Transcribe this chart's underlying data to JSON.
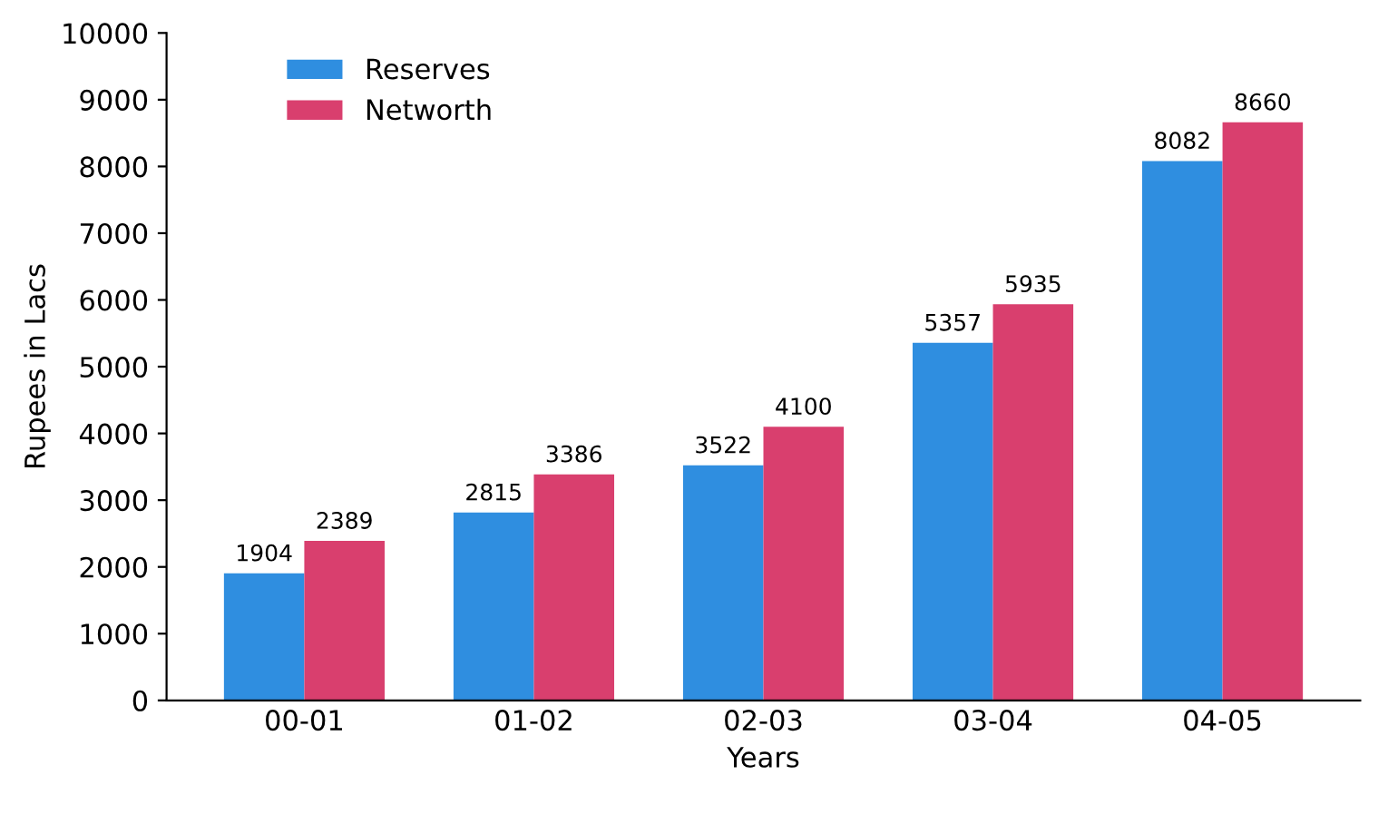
{
  "chart_data": {
    "type": "bar",
    "xlabel": "Years",
    "ylabel": "Rupees in Lacs",
    "categories": [
      "00-01",
      "01-02",
      "02-03",
      "03-04",
      "04-05"
    ],
    "series": [
      {
        "name": "Reserves",
        "color": "#2f8ee0",
        "values": [
          1904,
          2815,
          3522,
          5357,
          8082
        ]
      },
      {
        "name": "Networth",
        "color": "#d93f6e",
        "values": [
          2389,
          3386,
          4100,
          5935,
          8660
        ]
      }
    ],
    "ylim": [
      0,
      10000
    ],
    "yticks": [
      0,
      1000,
      2000,
      3000,
      4000,
      5000,
      6000,
      7000,
      8000,
      9000,
      10000
    ],
    "data_labels": true,
    "legend": "top left",
    "grid": false
  }
}
